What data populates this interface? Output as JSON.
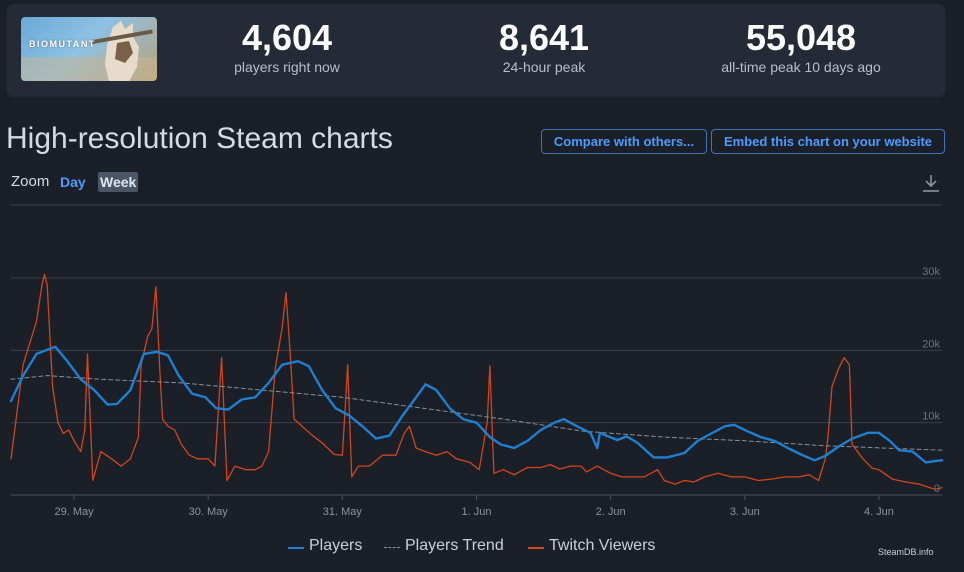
{
  "game": {
    "logo_text": "BIOMUTANT"
  },
  "stats": [
    {
      "value": "4,604",
      "label": "players right now"
    },
    {
      "value": "8,641",
      "label": "24-hour peak"
    },
    {
      "value": "55,048",
      "label": "all-time peak 10 days ago"
    }
  ],
  "page": {
    "title": "High-resolution Steam charts",
    "compare_label": "Compare with others...",
    "embed_label": "Embed this chart on your website",
    "zoom_label": "Zoom",
    "zoom_options": [
      "Day",
      "Week"
    ],
    "zoom_selected": "Week",
    "credit": "SteamDB.info"
  },
  "colors": {
    "players": "#1f7fd0",
    "trend": "#8a8f98",
    "twitch": "#d3451c",
    "grid": "#3a404b"
  },
  "chart_data": {
    "type": "line",
    "x_tick_labels": [
      "29. May",
      "30. May",
      "31. May",
      "1. Jun",
      "2. Jun",
      "3. Jun",
      "4. Jun"
    ],
    "x_tick_days": [
      1,
      2,
      3,
      4,
      5,
      6,
      7
    ],
    "xlim_days": [
      0.53,
      7.47
    ],
    "ylim": [
      0,
      30000
    ],
    "y_ticks": [
      0,
      10000,
      20000,
      30000
    ],
    "y_tick_labels": [
      "0",
      "10k",
      "20k",
      "30k"
    ],
    "grid": true,
    "legend_position": "bottom-center",
    "series": [
      {
        "name": "Players",
        "style": "solid",
        "points": [
          [
            0.53,
            13000
          ],
          [
            0.62,
            16500
          ],
          [
            0.72,
            19500
          ],
          [
            0.86,
            20500
          ],
          [
            0.95,
            18500
          ],
          [
            1.05,
            16000
          ],
          [
            1.15,
            14500
          ],
          [
            1.25,
            12500
          ],
          [
            1.32,
            12600
          ],
          [
            1.42,
            14500
          ],
          [
            1.52,
            19500
          ],
          [
            1.62,
            19800
          ],
          [
            1.7,
            19300
          ],
          [
            1.78,
            16500
          ],
          [
            1.88,
            14000
          ],
          [
            1.98,
            13500
          ],
          [
            2.06,
            12000
          ],
          [
            2.15,
            11800
          ],
          [
            2.25,
            13200
          ],
          [
            2.35,
            13500
          ],
          [
            2.45,
            15500
          ],
          [
            2.55,
            18000
          ],
          [
            2.67,
            18500
          ],
          [
            2.75,
            17800
          ],
          [
            2.85,
            14500
          ],
          [
            2.95,
            12000
          ],
          [
            3.05,
            11000
          ],
          [
            3.15,
            9500
          ],
          [
            3.25,
            7800
          ],
          [
            3.35,
            8200
          ],
          [
            3.45,
            11000
          ],
          [
            3.55,
            13500
          ],
          [
            3.62,
            15300
          ],
          [
            3.7,
            14500
          ],
          [
            3.8,
            12000
          ],
          [
            3.9,
            10500
          ],
          [
            4.0,
            10000
          ],
          [
            4.1,
            8000
          ],
          [
            4.18,
            7000
          ],
          [
            4.28,
            6500
          ],
          [
            4.38,
            7500
          ],
          [
            4.48,
            9000
          ],
          [
            4.58,
            10000
          ],
          [
            4.65,
            10500
          ],
          [
            4.75,
            9500
          ],
          [
            4.85,
            8600
          ],
          [
            4.9,
            6500
          ],
          [
            4.92,
            8600
          ],
          [
            4.97,
            8200
          ],
          [
            5.05,
            7600
          ],
          [
            5.12,
            8100
          ],
          [
            5.2,
            7200
          ],
          [
            5.32,
            5200
          ],
          [
            5.42,
            5200
          ],
          [
            5.55,
            5800
          ],
          [
            5.65,
            7500
          ],
          [
            5.75,
            8500
          ],
          [
            5.85,
            9500
          ],
          [
            5.92,
            9700
          ],
          [
            6.02,
            8800
          ],
          [
            6.12,
            8000
          ],
          [
            6.22,
            7500
          ],
          [
            6.32,
            6500
          ],
          [
            6.42,
            5600
          ],
          [
            6.52,
            4800
          ],
          [
            6.6,
            5400
          ],
          [
            6.7,
            6700
          ],
          [
            6.8,
            7800
          ],
          [
            6.92,
            8600
          ],
          [
            7.0,
            8600
          ],
          [
            7.08,
            7500
          ],
          [
            7.15,
            6200
          ],
          [
            7.25,
            6000
          ],
          [
            7.35,
            4500
          ],
          [
            7.42,
            4700
          ],
          [
            7.47,
            4800
          ]
        ]
      },
      {
        "name": "Players Trend",
        "style": "dashed",
        "points": [
          [
            0.53,
            16000
          ],
          [
            0.8,
            16500
          ],
          [
            1.2,
            16000
          ],
          [
            1.8,
            15500
          ],
          [
            2.4,
            14500
          ],
          [
            3.0,
            13500
          ],
          [
            3.6,
            12000
          ],
          [
            4.2,
            10500
          ],
          [
            4.8,
            8800
          ],
          [
            5.4,
            8000
          ],
          [
            6.0,
            7500
          ],
          [
            6.6,
            6800
          ],
          [
            7.47,
            6200
          ]
        ]
      },
      {
        "name": "Twitch Viewers",
        "style": "solid",
        "points": [
          [
            0.53,
            5000
          ],
          [
            0.62,
            18000
          ],
          [
            0.72,
            24000
          ],
          [
            0.76,
            29000
          ],
          [
            0.78,
            30500
          ],
          [
            0.8,
            29000
          ],
          [
            0.84,
            15000
          ],
          [
            0.88,
            10000
          ],
          [
            0.92,
            8500
          ],
          [
            0.96,
            9000
          ],
          [
            1.0,
            7500
          ],
          [
            1.05,
            6000
          ],
          [
            1.08,
            9000
          ],
          [
            1.1,
            19500
          ],
          [
            1.14,
            2000
          ],
          [
            1.2,
            6000
          ],
          [
            1.28,
            5000
          ],
          [
            1.35,
            4000
          ],
          [
            1.42,
            5000
          ],
          [
            1.48,
            8000
          ],
          [
            1.5,
            18000
          ],
          [
            1.55,
            22000
          ],
          [
            1.58,
            23000
          ],
          [
            1.61,
            28800
          ],
          [
            1.64,
            17000
          ],
          [
            1.66,
            10500
          ],
          [
            1.7,
            9500
          ],
          [
            1.75,
            9000
          ],
          [
            1.8,
            7000
          ],
          [
            1.86,
            5500
          ],
          [
            1.92,
            5000
          ],
          [
            2.0,
            5000
          ],
          [
            2.05,
            4000
          ],
          [
            2.1,
            19000
          ],
          [
            2.14,
            2000
          ],
          [
            2.2,
            4000
          ],
          [
            2.28,
            3500
          ],
          [
            2.35,
            3500
          ],
          [
            2.4,
            4000
          ],
          [
            2.45,
            6000
          ],
          [
            2.5,
            17500
          ],
          [
            2.55,
            23000
          ],
          [
            2.58,
            28000
          ],
          [
            2.61,
            20000
          ],
          [
            2.64,
            10500
          ],
          [
            2.7,
            9500
          ],
          [
            2.78,
            8200
          ],
          [
            2.85,
            7200
          ],
          [
            2.94,
            5600
          ],
          [
            3.0,
            5500
          ],
          [
            3.04,
            18000
          ],
          [
            3.07,
            2500
          ],
          [
            3.12,
            4000
          ],
          [
            3.2,
            4000
          ],
          [
            3.3,
            5500
          ],
          [
            3.4,
            5500
          ],
          [
            3.46,
            8500
          ],
          [
            3.5,
            9500
          ],
          [
            3.55,
            6500
          ],
          [
            3.62,
            6000
          ],
          [
            3.7,
            5500
          ],
          [
            3.78,
            6000
          ],
          [
            3.85,
            5000
          ],
          [
            3.95,
            4500
          ],
          [
            4.02,
            3500
          ],
          [
            4.08,
            10000
          ],
          [
            4.1,
            17800
          ],
          [
            4.13,
            3000
          ],
          [
            4.2,
            3500
          ],
          [
            4.28,
            2800
          ],
          [
            4.38,
            3800
          ],
          [
            4.48,
            3800
          ],
          [
            4.55,
            4200
          ],
          [
            4.62,
            3600
          ],
          [
            4.7,
            4000
          ],
          [
            4.78,
            4000
          ],
          [
            4.82,
            3200
          ],
          [
            4.9,
            4000
          ],
          [
            4.95,
            3500
          ],
          [
            5.0,
            3000
          ],
          [
            5.08,
            2500
          ],
          [
            5.15,
            2500
          ],
          [
            5.25,
            2500
          ],
          [
            5.35,
            3500
          ],
          [
            5.4,
            2000
          ],
          [
            5.48,
            1500
          ],
          [
            5.55,
            2000
          ],
          [
            5.62,
            1800
          ],
          [
            5.7,
            2500
          ],
          [
            5.8,
            3000
          ],
          [
            5.9,
            2500
          ],
          [
            6.0,
            2500
          ],
          [
            6.1,
            2000
          ],
          [
            6.2,
            2200
          ],
          [
            6.3,
            2500
          ],
          [
            6.4,
            2500
          ],
          [
            6.48,
            2800
          ],
          [
            6.55,
            2000
          ],
          [
            6.6,
            5000
          ],
          [
            6.62,
            8000
          ],
          [
            6.65,
            15000
          ],
          [
            6.7,
            17500
          ],
          [
            6.74,
            19000
          ],
          [
            6.78,
            18000
          ],
          [
            6.8,
            7000
          ],
          [
            6.88,
            5000
          ],
          [
            6.95,
            3700
          ],
          [
            7.0,
            3500
          ],
          [
            7.1,
            2200
          ],
          [
            7.2,
            1800
          ],
          [
            7.3,
            1500
          ],
          [
            7.38,
            1000
          ],
          [
            7.42,
            800
          ],
          [
            7.47,
            1000
          ]
        ]
      }
    ]
  }
}
